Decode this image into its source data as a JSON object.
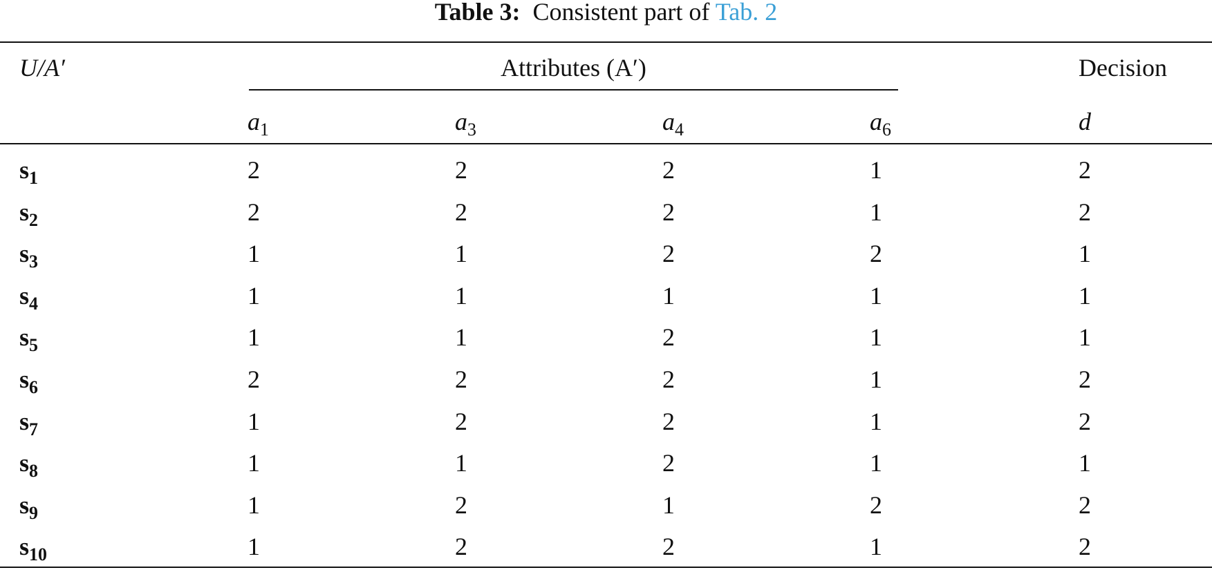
{
  "title": {
    "label": "Table 3:",
    "text": "Consistent part of",
    "link": "Tab. 2"
  },
  "header": {
    "corner": "U/A′",
    "attributes": "Attributes (A′)",
    "decision": "Decision",
    "columns": [
      {
        "base": "a",
        "sub": "1"
      },
      {
        "base": "a",
        "sub": "3"
      },
      {
        "base": "a",
        "sub": "4"
      },
      {
        "base": "a",
        "sub": "6"
      },
      {
        "base": "d",
        "sub": null
      }
    ]
  },
  "rows": [
    {
      "base": "s",
      "sub": "1",
      "cells": [
        "2",
        "2",
        "2",
        "1",
        "2"
      ]
    },
    {
      "base": "s",
      "sub": "2",
      "cells": [
        "2",
        "2",
        "2",
        "1",
        "2"
      ]
    },
    {
      "base": "s",
      "sub": "3",
      "cells": [
        "1",
        "1",
        "2",
        "2",
        "1"
      ]
    },
    {
      "base": "s",
      "sub": "4",
      "cells": [
        "1",
        "1",
        "1",
        "1",
        "1"
      ]
    },
    {
      "base": "s",
      "sub": "5",
      "cells": [
        "1",
        "1",
        "2",
        "1",
        "1"
      ]
    },
    {
      "base": "s",
      "sub": "6",
      "cells": [
        "2",
        "2",
        "2",
        "1",
        "2"
      ]
    },
    {
      "base": "s",
      "sub": "7",
      "cells": [
        "1",
        "2",
        "2",
        "1",
        "2"
      ]
    },
    {
      "base": "s",
      "sub": "8",
      "cells": [
        "1",
        "1",
        "2",
        "1",
        "1"
      ]
    },
    {
      "base": "s",
      "sub": "9",
      "cells": [
        "1",
        "2",
        "1",
        "2",
        "2"
      ]
    },
    {
      "base": "s",
      "sub": "10",
      "cells": [
        "1",
        "2",
        "2",
        "1",
        "2"
      ]
    }
  ]
}
